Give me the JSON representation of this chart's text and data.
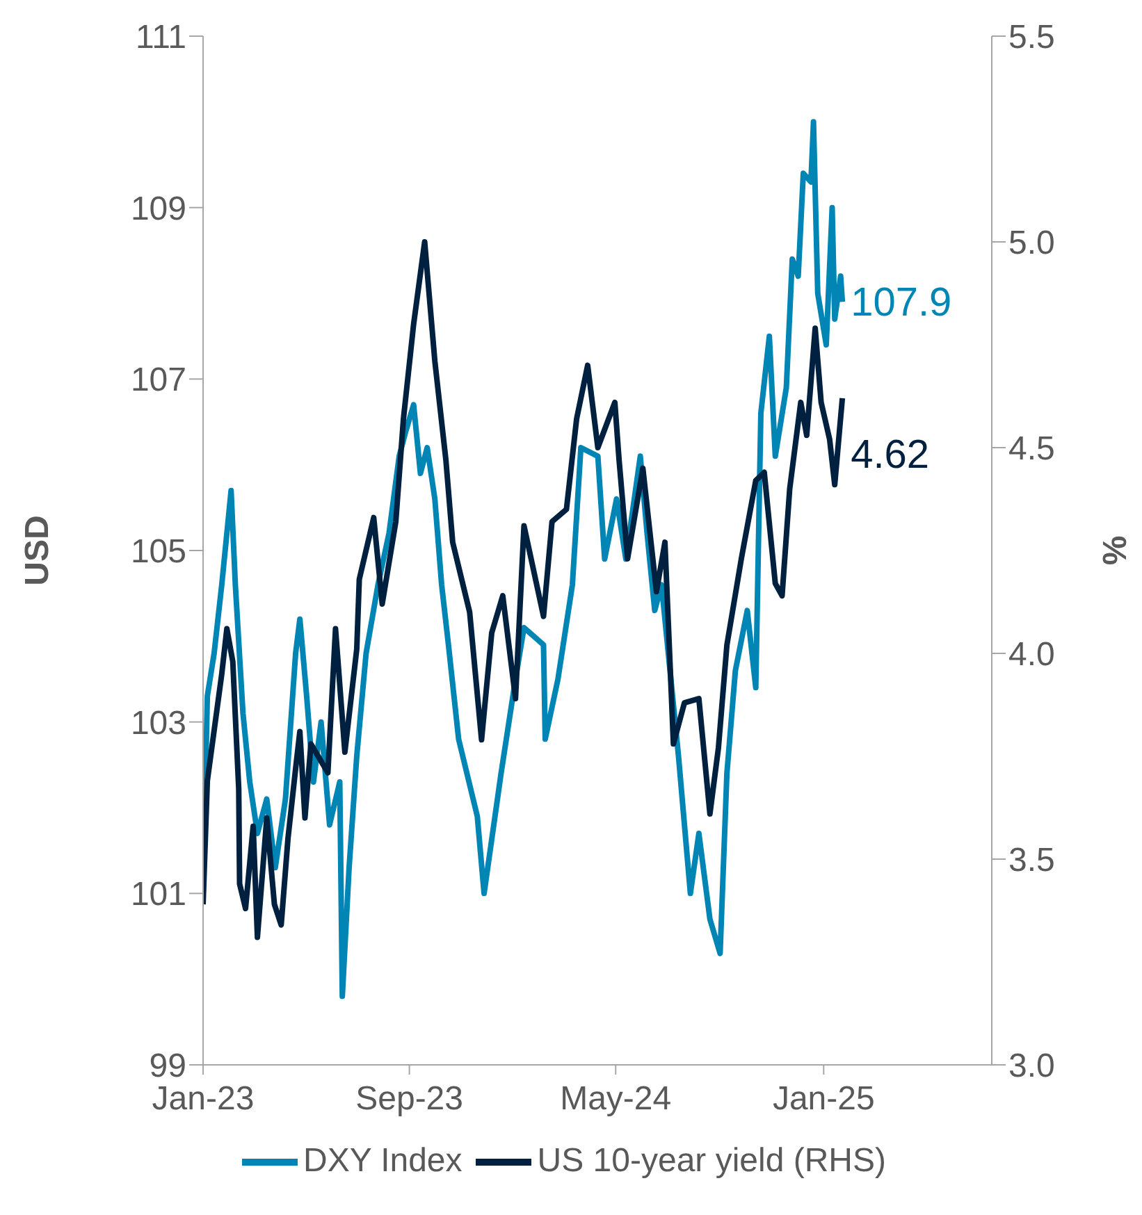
{
  "chart_data": {
    "type": "line",
    "xlabel": null,
    "ylabel": "USD",
    "y2label": "%",
    "xlim": [
      "2023-01-01",
      "2025-07-18"
    ],
    "xticks": [
      {
        "value": "2023-01-01",
        "label": "Jan-23"
      },
      {
        "value": "2023-09-01",
        "label": "Sep-23"
      },
      {
        "value": "2024-05-01",
        "label": "May-24"
      },
      {
        "value": "2025-01-01",
        "label": "Jan-25"
      }
    ],
    "ylim": [
      99,
      111
    ],
    "yticks": [
      99,
      101,
      103,
      105,
      107,
      109,
      111
    ],
    "y2lim": [
      3,
      5.5
    ],
    "y2ticks": [
      {
        "value": 3,
        "label": "3.0"
      },
      3.5,
      {
        "value": 4,
        "label": "4.0"
      },
      4.5,
      {
        "value": 5,
        "label": "5.0"
      },
      5.5
    ],
    "legend": "bottom",
    "marker": "none",
    "line_style": "solid",
    "series": [
      {
        "name": "DXY Index",
        "color": "#0085b4",
        "x": [
          "2023-01-01",
          "2023-01-06",
          "2023-01-14",
          "2023-01-23",
          "2023-01-28",
          "2023-02-03",
          "2023-02-08",
          "2023-02-17",
          "2023-02-25",
          "2023-03-06",
          "2023-03-17",
          "2023-03-27",
          "2023-04-08",
          "2023-04-20",
          "2023-04-25",
          "2023-05-03",
          "2023-05-11",
          "2023-05-20",
          "2023-05-30",
          "2023-06-11",
          "2023-06-14",
          "2023-06-22",
          "2023-07-01",
          "2023-07-12",
          "2023-07-26",
          "2023-08-08",
          "2023-08-20",
          "2023-08-28",
          "2023-09-06",
          "2023-09-14",
          "2023-09-22",
          "2023-10-01",
          "2023-10-09",
          "2023-10-17",
          "2023-10-29",
          "2023-11-20",
          "2023-11-28",
          "2023-12-18",
          "2024-01-04",
          "2024-01-14",
          "2024-02-06",
          "2024-02-08",
          "2024-02-23",
          "2024-03-11",
          "2024-03-21",
          "2024-04-10",
          "2024-04-18",
          "2024-05-02",
          "2024-05-13",
          "2024-05-30",
          "2024-06-07",
          "2024-06-16",
          "2024-06-24",
          "2024-07-14",
          "2024-07-28",
          "2024-08-07",
          "2024-08-20",
          "2024-09-01",
          "2024-09-09",
          "2024-09-19",
          "2024-10-03",
          "2024-10-13",
          "2024-10-19",
          "2024-10-29",
          "2024-11-05",
          "2024-11-18",
          "2024-11-25",
          "2024-12-02",
          "2024-12-08",
          "2024-12-17",
          "2024-12-20",
          "2024-12-25",
          "2025-01-04",
          "2025-01-11",
          "2025-01-14",
          "2025-01-21",
          "2025-01-23"
        ],
        "values": [
          101.0,
          103.3,
          103.8,
          104.6,
          105.1,
          105.7,
          104.6,
          103.1,
          102.3,
          101.7,
          102.1,
          101.3,
          102.1,
          103.8,
          104.2,
          103.3,
          102.3,
          103.0,
          101.8,
          102.3,
          99.8,
          101.3,
          102.6,
          103.8,
          104.6,
          105.2,
          106.1,
          106.4,
          106.7,
          105.9,
          106.2,
          105.6,
          104.6,
          103.9,
          102.8,
          101.9,
          101.0,
          102.4,
          103.5,
          104.1,
          103.9,
          102.8,
          103.5,
          104.6,
          106.2,
          106.1,
          104.9,
          105.6,
          104.9,
          106.1,
          105.2,
          104.3,
          104.6,
          102.6,
          101.0,
          101.7,
          100.7,
          100.3,
          102.4,
          103.6,
          104.3,
          103.4,
          106.6,
          107.5,
          106.1,
          106.9,
          108.4,
          108.2,
          109.4,
          109.3,
          110.0,
          108.0,
          107.4,
          109.0,
          107.7,
          108.2,
          107.9
        ],
        "value_labels": [
          null,
          null,
          null,
          null,
          null,
          null,
          null,
          null,
          null,
          null,
          null,
          null,
          null,
          null,
          null,
          null,
          null,
          null,
          null,
          null,
          null,
          null,
          null,
          null,
          null,
          null,
          null,
          null,
          null,
          null,
          null,
          null,
          null,
          null,
          null,
          null,
          null,
          null,
          null,
          null,
          null,
          null,
          null,
          null,
          null,
          null,
          null,
          null,
          null,
          null,
          null,
          null,
          null,
          null,
          null,
          null,
          null,
          null,
          null,
          null,
          null,
          null,
          null,
          null,
          null,
          null,
          null,
          null,
          null,
          null,
          null,
          null,
          null,
          null,
          null,
          null,
          "107.9"
        ]
      },
      {
        "name": "US 10-year yield (RHS)",
        "color": "#00203f",
        "axis": "y2",
        "x": [
          "2023-01-01",
          "2023-01-06",
          "2023-01-23",
          "2023-01-29",
          "2023-02-05",
          "2023-02-12",
          "2023-02-13",
          "2023-02-20",
          "2023-03-01",
          "2023-03-06",
          "2023-03-17",
          "2023-03-26",
          "2023-04-03",
          "2023-04-11",
          "2023-04-20",
          "2023-04-25",
          "2023-05-01",
          "2023-05-08",
          "2023-05-28",
          "2023-06-06",
          "2023-06-17",
          "2023-07-01",
          "2023-07-04",
          "2023-07-21",
          "2023-07-31",
          "2023-08-16",
          "2023-08-25",
          "2023-09-06",
          "2023-09-19",
          "2023-10-01",
          "2023-10-14",
          "2023-10-22",
          "2023-11-11",
          "2023-11-25",
          "2023-12-07",
          "2023-12-20",
          "2024-01-04",
          "2024-01-14",
          "2024-02-06",
          "2024-02-16",
          "2024-03-04",
          "2024-03-16",
          "2024-03-29",
          "2024-04-10",
          "2024-04-30",
          "2024-05-05",
          "2024-05-15",
          "2024-06-02",
          "2024-06-18",
          "2024-06-28",
          "2024-07-08",
          "2024-07-21",
          "2024-08-07",
          "2024-08-20",
          "2024-08-30",
          "2024-09-09",
          "2024-09-26",
          "2024-10-13",
          "2024-10-23",
          "2024-11-05",
          "2024-11-13",
          "2024-11-22",
          "2024-12-05",
          "2024-12-12",
          "2024-12-22",
          "2024-12-29",
          "2025-01-08",
          "2025-01-14",
          "2025-01-23"
        ],
        "values": [
          3.39,
          3.69,
          3.95,
          4.06,
          3.98,
          3.67,
          3.44,
          3.38,
          3.58,
          3.31,
          3.6,
          3.39,
          3.34,
          3.55,
          3.72,
          3.81,
          3.6,
          3.78,
          3.71,
          4.06,
          3.76,
          4.01,
          4.18,
          4.33,
          4.12,
          4.32,
          4.57,
          4.8,
          5.0,
          4.71,
          4.47,
          4.27,
          4.1,
          3.79,
          4.05,
          4.14,
          3.89,
          4.31,
          4.09,
          4.32,
          4.35,
          4.57,
          4.7,
          4.5,
          4.61,
          4.47,
          4.23,
          4.45,
          4.15,
          4.27,
          3.78,
          3.88,
          3.89,
          3.61,
          3.77,
          4.02,
          4.23,
          4.42,
          4.44,
          4.17,
          4.14,
          4.4,
          4.61,
          4.53,
          4.79,
          4.61,
          4.52,
          4.41,
          4.62
        ],
        "value_labels": [
          null,
          null,
          null,
          null,
          null,
          null,
          null,
          null,
          null,
          null,
          null,
          null,
          null,
          null,
          null,
          null,
          null,
          null,
          null,
          null,
          null,
          null,
          null,
          null,
          null,
          null,
          null,
          null,
          null,
          null,
          null,
          null,
          null,
          null,
          null,
          null,
          null,
          null,
          null,
          null,
          null,
          null,
          null,
          null,
          null,
          null,
          null,
          null,
          null,
          null,
          null,
          null,
          null,
          null,
          null,
          null,
          null,
          null,
          null,
          null,
          null,
          null,
          null,
          null,
          null,
          null,
          null,
          null,
          "4.62"
        ]
      }
    ]
  }
}
